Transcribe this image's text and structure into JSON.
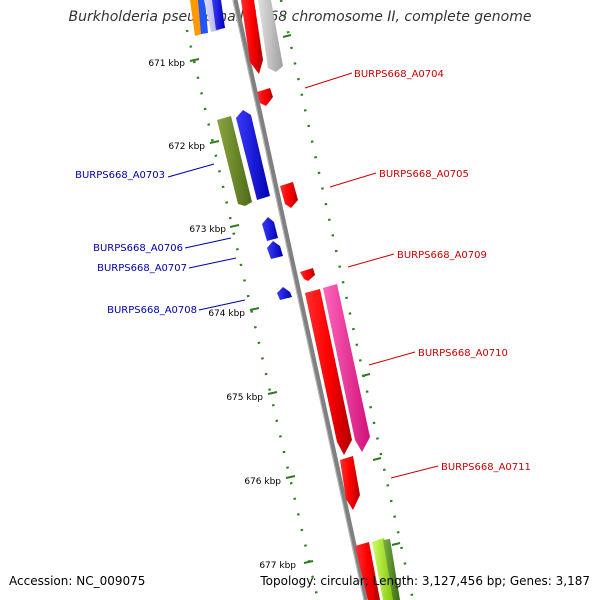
{
  "title": "Burkholderia pseudomallei 668 chromosome II, complete genome",
  "footer": {
    "accession": "Accession: NC_009075",
    "summary": "Topology: circular; Length: 3,127,456 bp; Genes: 3,187"
  },
  "colors": {
    "forward_label": "#cc0000",
    "reverse_label": "#0000aa",
    "backbone": "#808080",
    "ruler": "#2e7d1e"
  },
  "ruler_ticks": [
    {
      "kbp": 671,
      "label": "671 kbp"
    },
    {
      "kbp": 672,
      "label": "672 kbp"
    },
    {
      "kbp": 673,
      "label": "673 kbp"
    },
    {
      "kbp": 674,
      "label": "674 kbp"
    },
    {
      "kbp": 675,
      "label": "675 kbp"
    },
    {
      "kbp": 676,
      "label": "676 kbp"
    },
    {
      "kbp": 677,
      "label": "677 kbp"
    }
  ],
  "gene_labels": [
    {
      "name": "BURPS668_A0704",
      "strand": "forward"
    },
    {
      "name": "BURPS668_A0705",
      "strand": "forward"
    },
    {
      "name": "BURPS668_A0709",
      "strand": "forward"
    },
    {
      "name": "BURPS668_A0710",
      "strand": "forward"
    },
    {
      "name": "BURPS668_A0711",
      "strand": "forward"
    },
    {
      "name": "BURPS668_A0703",
      "strand": "reverse"
    },
    {
      "name": "BURPS668_A0706",
      "strand": "reverse"
    },
    {
      "name": "BURPS668_A0707",
      "strand": "reverse"
    },
    {
      "name": "BURPS668_A0708",
      "strand": "reverse"
    }
  ]
}
